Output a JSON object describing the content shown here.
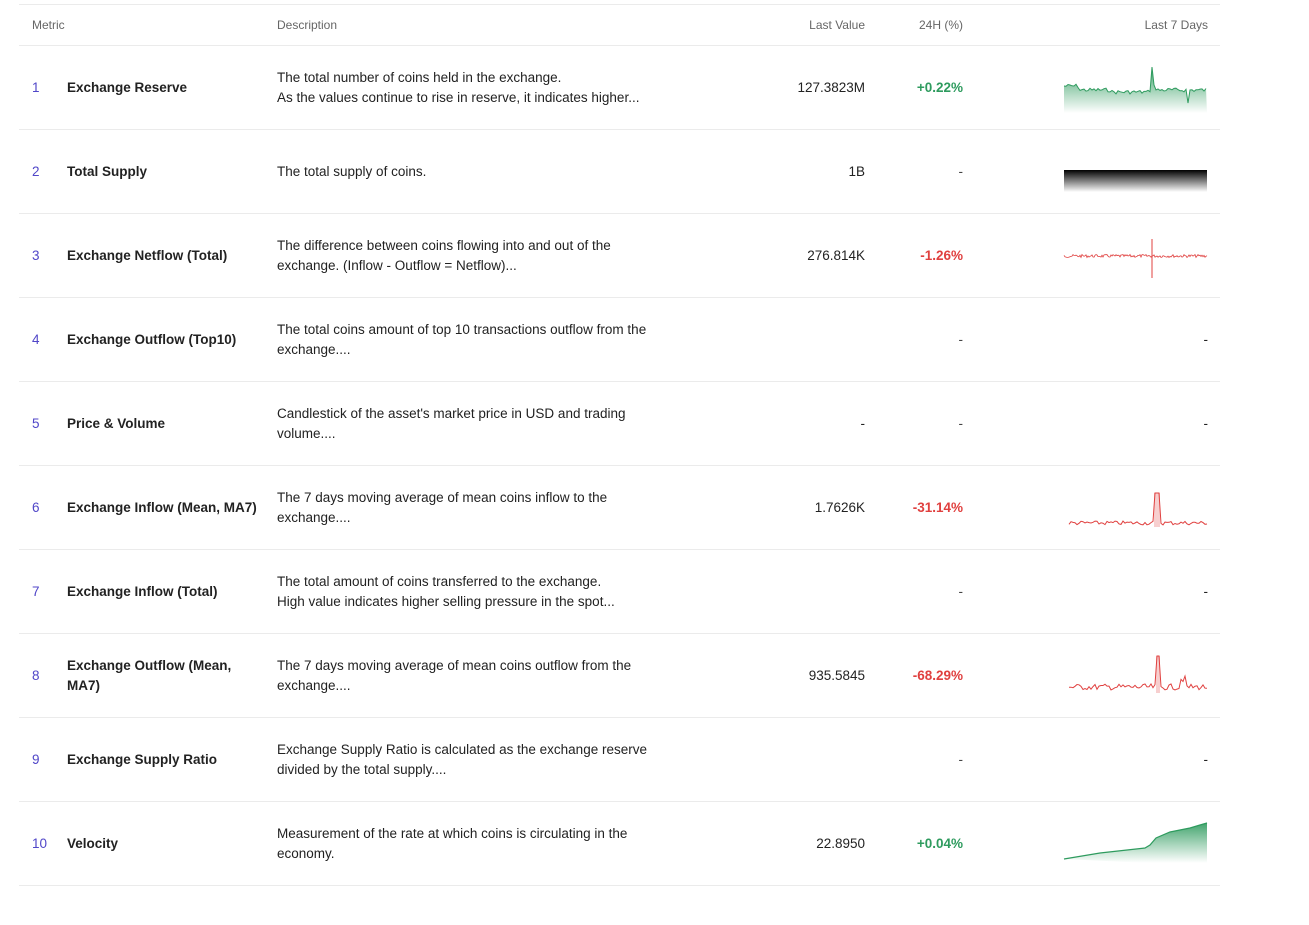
{
  "table": {
    "header": [
      "Metric",
      "Description",
      "Last Value",
      "24H (%)",
      "Last 7 Days"
    ],
    "rows": [
      {
        "rank": 1,
        "name": "Exchange Reserve",
        "description": [
          "The total number of coins held in the exchange.",
          "As the values continue to rise in reserve, it indicates higher..."
        ],
        "last_value": "127.3823M",
        "change": "+0.22%"
      },
      {
        "rank": 2,
        "name": "Total Supply",
        "description": [
          "The total supply of coins."
        ],
        "last_value": "1B",
        "change": "-"
      },
      {
        "rank": 3,
        "name": "Exchange Netflow (Total)",
        "description": [
          "The difference between coins flowing into and out of the",
          "exchange. (Inflow - Outflow = Netflow)..."
        ],
        "last_value": "276.814K",
        "change": "-1.26%"
      },
      {
        "rank": 4,
        "name": "Exchange Outflow (Top10)",
        "description": [
          "The total coins amount of top 10 transactions outflow from the",
          "exchange...."
        ],
        "change": "-",
        "last_7_days": "-"
      },
      {
        "rank": 5,
        "name": "Price & Volume",
        "description": [
          "Candlestick of the asset's market price in USD and trading",
          "volume...."
        ],
        "last_value": "-",
        "change": "-",
        "last_7_days": "-"
      },
      {
        "rank": 6,
        "name": "Exchange Inflow (Mean, MA7)",
        "description": [
          "The 7 days moving average of mean coins inflow to the",
          "exchange...."
        ],
        "last_value": "1.7626K",
        "change": "-31.14%"
      },
      {
        "rank": 7,
        "name": "Exchange Inflow (Total)",
        "description": [
          "The total amount of coins transferred to the exchange.",
          "High value indicates higher selling pressure in the spot..."
        ],
        "change": "-",
        "last_7_days": "-"
      },
      {
        "rank": 8,
        "name": "Exchange Outflow (Mean, MA7)",
        "description": [
          "The 7 days moving average of mean coins outflow from the",
          "exchange...."
        ],
        "last_value": "935.5845",
        "change": "-68.29%"
      },
      {
        "rank": 9,
        "name": "Exchange Supply Ratio",
        "description": [
          "Exchange Supply Ratio is calculated as the exchange reserve",
          "divided by the total supply...."
        ],
        "change": "-",
        "last_7_days": "-"
      },
      {
        "rank": 10,
        "name": "Velocity",
        "description": [
          "Measurement of the rate at which coins is circulating in the",
          "economy."
        ],
        "last_value": "22.8950",
        "change": "+0.04%"
      }
    ]
  }
}
